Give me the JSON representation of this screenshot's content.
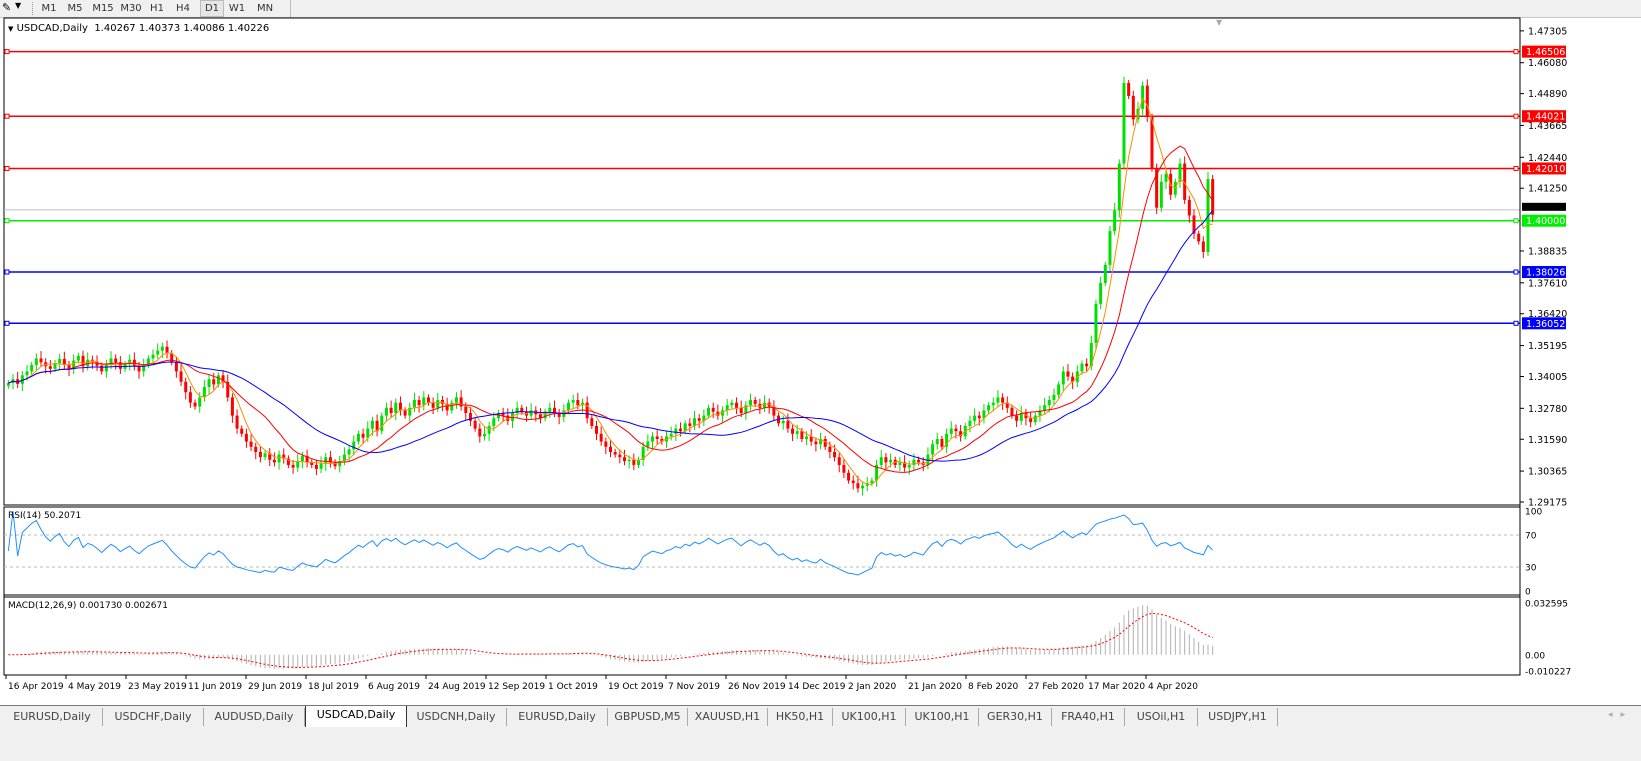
{
  "toolbar": {
    "timeframes": [
      "M1",
      "M5",
      "M15",
      "M30",
      "H1",
      "H4",
      "D1",
      "W1",
      "MN"
    ],
    "active": "D1"
  },
  "chart_header": {
    "symbol": "USDCAD,Daily",
    "ohlc": "1.40267 1.40373 1.40086 1.40226"
  },
  "chart_data": [
    {
      "type": "candlestick",
      "title": "USDCAD,Daily",
      "ylim": [
        1.2906,
        1.478
      ],
      "y_ticks": [
        1.47305,
        1.4608,
        1.4489,
        1.43665,
        1.4244,
        1.4125,
        1.38835,
        1.3761,
        1.3642,
        1.35195,
        1.34005,
        1.3278,
        1.3159,
        1.30365,
        1.29175
      ],
      "x_tick_labels": [
        "16 Apr 2019",
        "4 May 2019",
        "23 May 2019",
        "11 Jun 2019",
        "29 Jun 2019",
        "18 Jul 2019",
        "6 Aug 2019",
        "24 Aug 2019",
        "12 Sep 2019",
        "1 Oct 2019",
        "19 Oct 2019",
        "7 Nov 2019",
        "26 Nov 2019",
        "14 Dec 2019",
        "2 Jan 2020",
        "21 Jan 2020",
        "8 Feb 2020",
        "27 Feb 2020",
        "17 Mar 2020",
        "4 Apr 2020"
      ],
      "current_price": "1.40226",
      "horizontal_levels": [
        {
          "value": "1.46506",
          "color": "#ff0000"
        },
        {
          "value": "1.44021",
          "color": "#ff0000"
        },
        {
          "value": "1.42010",
          "color": "#ff0000"
        },
        {
          "value": "1.40000",
          "color": "#00ee00"
        },
        {
          "value": "1.38026",
          "color": "#0000ff"
        },
        {
          "value": "1.36052",
          "color": "#0000ff"
        }
      ],
      "closes": [
        1.3375,
        1.339,
        1.3372,
        1.3405,
        1.342,
        1.3445,
        1.347,
        1.3455,
        1.344,
        1.343,
        1.3452,
        1.3468,
        1.3445,
        1.343,
        1.3462,
        1.348,
        1.344,
        1.3465,
        1.3458,
        1.3442,
        1.342,
        1.3445,
        1.347,
        1.3455,
        1.343,
        1.3448,
        1.3465,
        1.344,
        1.342,
        1.3445,
        1.347,
        1.3485,
        1.35,
        1.3515,
        1.349,
        1.3455,
        1.342,
        1.338,
        1.334,
        1.33,
        1.3285,
        1.332,
        1.336,
        1.339,
        1.337,
        1.3405,
        1.338,
        1.332,
        1.325,
        1.32,
        1.318,
        1.315,
        1.313,
        1.311,
        1.309,
        1.3105,
        1.308,
        1.307,
        1.31,
        1.3085,
        1.306,
        1.305,
        1.3075,
        1.3095,
        1.307,
        1.306,
        1.3045,
        1.3065,
        1.309,
        1.307,
        1.3055,
        1.3075,
        1.31,
        1.312,
        1.315,
        1.318,
        1.3165,
        1.32,
        1.323,
        1.319,
        1.325,
        1.328,
        1.326,
        1.33,
        1.327,
        1.325,
        1.328,
        1.331,
        1.329,
        1.332,
        1.33,
        1.328,
        1.331,
        1.3295,
        1.327,
        1.33,
        1.332,
        1.3285,
        1.326,
        1.323,
        1.32,
        1.317,
        1.318,
        1.321,
        1.324,
        1.326,
        1.325,
        1.323,
        1.326,
        1.328,
        1.3265,
        1.325,
        1.327,
        1.3255,
        1.324,
        1.3265,
        1.328,
        1.326,
        1.3245,
        1.327,
        1.33,
        1.331,
        1.329,
        1.33,
        1.324,
        1.321,
        1.318,
        1.315,
        1.313,
        1.311,
        1.31,
        1.309,
        1.3075,
        1.308,
        1.306,
        1.308,
        1.313,
        1.315,
        1.317,
        1.316,
        1.315,
        1.317,
        1.318,
        1.32,
        1.319,
        1.322,
        1.321,
        1.324,
        1.323,
        1.325,
        1.328,
        1.3265,
        1.325,
        1.327,
        1.329,
        1.33,
        1.328,
        1.326,
        1.329,
        1.331,
        1.3295,
        1.328,
        1.33,
        1.3285,
        1.325,
        1.322,
        1.323,
        1.32,
        1.318,
        1.319,
        1.316,
        1.317,
        1.315,
        1.314,
        1.316,
        1.313,
        1.311,
        1.309,
        1.306,
        1.303,
        1.3,
        1.299,
        1.297,
        1.298,
        1.299,
        1.3,
        1.306,
        1.309,
        1.307,
        1.308,
        1.306,
        1.307,
        1.305,
        1.306,
        1.308,
        1.307,
        1.306,
        1.31,
        1.314,
        1.316,
        1.313,
        1.318,
        1.32,
        1.319,
        1.317,
        1.321,
        1.323,
        1.325,
        1.324,
        1.327,
        1.329,
        1.33,
        1.332,
        1.33,
        1.328,
        1.325,
        1.323,
        1.326,
        1.324,
        1.3225,
        1.325,
        1.327,
        1.329,
        1.331,
        1.333,
        1.337,
        1.342,
        1.34,
        1.338,
        1.342,
        1.345,
        1.344,
        1.353,
        1.368,
        1.376,
        1.383,
        1.396,
        1.404,
        1.422,
        1.453,
        1.448,
        1.439,
        1.443,
        1.452,
        1.44,
        1.42,
        1.405,
        1.415,
        1.418,
        1.41,
        1.415,
        1.422,
        1.408,
        1.402,
        1.395,
        1.392,
        1.388,
        1.416,
        1.40226
      ],
      "colors": {
        "bull": "#00e000",
        "bear": "#ff0000",
        "ma_fast": "#ff8c00",
        "ma_mid": "#ff0000",
        "ma_slow": "#0000ff"
      }
    },
    {
      "type": "line",
      "title": "RSI(14) 50.2071",
      "ylim": [
        0,
        100
      ],
      "y_ticks": [
        "100",
        "70",
        "30",
        "0"
      ],
      "levels": [
        70,
        30
      ],
      "color": "#1e90ff"
    },
    {
      "type": "bar",
      "title": "MACD(12,26,9) 0.001730 0.002671",
      "ylim": [
        -0.010227,
        0.032595
      ],
      "y_ticks": [
        "0.032595",
        "0.00",
        "-0.010227"
      ],
      "histogram_color": "#b0b0b0",
      "signal_color": "#ff0000"
    }
  ],
  "tabs": [
    "EURUSD,Daily",
    "USDCHF,Daily",
    "AUDUSD,Daily",
    "USDCAD,Daily",
    "USDCNH,Daily",
    "EURUSD,Daily",
    "GBPUSD,M5",
    "XAUUSD,H1",
    "HK50,H1",
    "UK100,H1",
    "UK100,H1",
    "GER30,H1",
    "FRA40,H1",
    "USOil,H1",
    "USDJPY,H1"
  ],
  "active_tab": "USDCAD,Daily"
}
